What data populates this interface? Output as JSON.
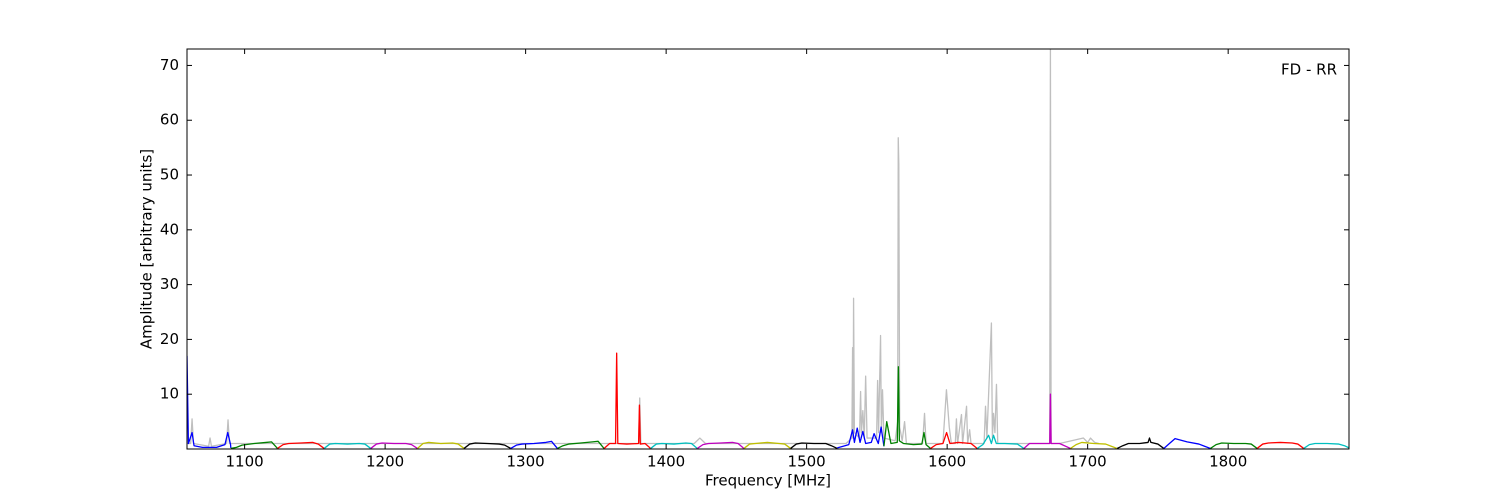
{
  "chart_data": {
    "type": "line",
    "xlabel": "Frequency [MHz]",
    "ylabel": "Amplitude [arbitrary units]",
    "annotation": "FD - RR",
    "xlim": [
      1059,
      1886
    ],
    "ylim": [
      0,
      73
    ],
    "xticks": [
      1100,
      1200,
      1300,
      1400,
      1500,
      1600,
      1700,
      1800
    ],
    "yticks": [
      10,
      20,
      30,
      40,
      50,
      60,
      70
    ],
    "grid": false,
    "series": [
      {
        "color": "#bfbfbf",
        "x": [
          1059,
          1061.6,
          1062.6,
          1063.6,
          1074.4,
          1075.4,
          1076.4,
          1087.2,
          1088.2,
          1089.2,
          1375,
          1380.4,
          1381.2,
          1382,
          1420,
          1424,
          1428,
          1528,
          1532.2,
          1532.7,
          1533.1,
          1533.4,
          1534,
          1537.6,
          1538.4,
          1539,
          1540,
          1541,
          1542,
          1543,
          1549.8,
          1550.5,
          1551.2,
          1552.6,
          1553.2,
          1554,
          1555,
          1563,
          1564.8,
          1565.2,
          1565.6,
          1566.2,
          1568,
          1569.7,
          1571,
          1582.5,
          1583.9,
          1585,
          1597,
          1599.5,
          1601.5,
          1603,
          1605.8,
          1606.6,
          1607.4,
          1610.2,
          1611,
          1613.8,
          1614.6,
          1616,
          1617,
          1626.3,
          1627.3,
          1628.3,
          1631.5,
          1632.2,
          1633,
          1634,
          1635.1,
          1636,
          1670,
          1673,
          1673.5,
          1674,
          1680,
          1697,
          1700,
          1702,
          1705,
          1708
        ],
        "values": [
          1,
          1,
          5.5,
          1,
          0.5,
          2,
          0.5,
          1,
          5.3,
          1,
          1,
          1,
          9.3,
          1,
          1,
          2,
          1,
          1,
          2,
          18.5,
          2,
          27.5,
          3,
          2,
          10.5,
          3,
          7,
          2,
          13.3,
          2,
          2,
          12.5,
          3,
          20.7,
          3,
          10.8,
          2,
          1.5,
          5,
          56.8,
          52,
          4,
          1.5,
          5,
          1,
          1,
          6.5,
          1,
          1,
          10.8,
          4,
          1,
          1,
          5.5,
          1,
          6.3,
          1,
          7.8,
          1,
          3.5,
          1,
          1,
          7.8,
          2,
          23,
          2,
          6.5,
          3,
          11.8,
          1,
          1,
          1,
          73,
          1,
          1,
          2,
          1.2,
          2,
          1.2,
          1
        ]
      },
      {
        "color": "#0000ff",
        "x": [
          1059,
          1060,
          1062.6,
          1064,
          1070,
          1080,
          1086,
          1088,
          1090,
          1090.2
        ],
        "values": [
          17,
          1,
          3,
          0.6,
          0.3,
          0.3,
          0.8,
          3,
          0.8,
          0.2
        ]
      },
      {
        "color": "#008000",
        "x": [
          1090.2,
          1094.2,
          1098.2,
          1106.8,
          1115.2,
          1119.2,
          1123.4
        ],
        "values": [
          0.1,
          0.3,
          0.7,
          1.0,
          1.2,
          1.3,
          0.1
        ]
      },
      {
        "color": "#ff0000",
        "x": [
          1123.4,
          1127.4,
          1131.4,
          1140,
          1148.4,
          1152.4,
          1156.6
        ],
        "values": [
          0.1,
          0.8,
          1.0,
          1.1,
          1.2,
          0.9,
          0.1
        ]
      },
      {
        "color": "#00bfbf",
        "x": [
          1156.6,
          1160.6,
          1164.6,
          1173.2,
          1181.6,
          1185.6,
          1189.8
        ],
        "values": [
          0.1,
          0.9,
          1.0,
          0.9,
          1.0,
          0.9,
          0.1
        ]
      },
      {
        "color": "#bf00bf",
        "x": [
          1189.8,
          1193.8,
          1197.8,
          1206.4,
          1214.8,
          1218.8,
          1223
        ],
        "values": [
          0.1,
          0.9,
          1.1,
          1.0,
          1.0,
          0.8,
          0.1
        ]
      },
      {
        "color": "#bfbf00",
        "x": [
          1223,
          1227,
          1231,
          1239.6,
          1248,
          1252,
          1256.2
        ],
        "values": [
          0.1,
          1.0,
          1.2,
          1.0,
          1.1,
          0.9,
          0.1
        ]
      },
      {
        "color": "#000000",
        "x": [
          1256.2,
          1260.2,
          1264.2,
          1272.8,
          1281.2,
          1285.2,
          1289.4
        ],
        "values": [
          0.1,
          0.9,
          1.1,
          1.0,
          0.9,
          0.7,
          0.1
        ]
      },
      {
        "color": "#0000ff",
        "x": [
          1289.4,
          1293.4,
          1297.4,
          1306,
          1314.4,
          1318.4,
          1322.6
        ],
        "values": [
          0.1,
          0.7,
          0.9,
          1.0,
          1.2,
          1.4,
          0.1
        ]
      },
      {
        "color": "#008000",
        "x": [
          1322.6,
          1326.6,
          1330.6,
          1339.2,
          1347.6,
          1351.6,
          1355.8
        ],
        "values": [
          0.1,
          0.6,
          0.9,
          1.1,
          1.3,
          1.4,
          0.1
        ]
      },
      {
        "color": "#ff0000",
        "x": [
          1355.8,
          1359.8,
          1364,
          1364.8,
          1365.6,
          1372,
          1380.4,
          1381,
          1381.6,
          1385,
          1389
        ],
        "values": [
          0.1,
          1.0,
          1.0,
          17.5,
          1.0,
          0.9,
          1.0,
          8,
          0.9,
          1.0,
          0.1
        ]
      },
      {
        "color": "#00bfbf",
        "x": [
          1389,
          1393,
          1397,
          1405.6,
          1414,
          1418,
          1422.2
        ],
        "values": [
          0.1,
          0.9,
          1.0,
          0.9,
          1.1,
          1.0,
          0.1
        ]
      },
      {
        "color": "#bf00bf",
        "x": [
          1422.2,
          1426.2,
          1430.2,
          1438.8,
          1447.2,
          1451.2,
          1455.4
        ],
        "values": [
          0.1,
          0.8,
          1.0,
          1.1,
          1.2,
          1.0,
          0.1
        ]
      },
      {
        "color": "#bfbf00",
        "x": [
          1455.4,
          1459.4,
          1463.4,
          1472,
          1480.4,
          1484.4,
          1488.6
        ],
        "values": [
          0.1,
          0.9,
          1.0,
          1.2,
          1.0,
          0.9,
          0.1
        ]
      },
      {
        "color": "#000000",
        "x": [
          1488.6,
          1492.6,
          1496.6,
          1505.2,
          1513.6,
          1517.6,
          1521.8
        ],
        "values": [
          0.1,
          0.9,
          1.1,
          1.0,
          1.0,
          0.6,
          0.1
        ]
      },
      {
        "color": "#0000ff",
        "x": [
          1521.8,
          1526,
          1530,
          1532.7,
          1534,
          1536,
          1538,
          1540,
          1542,
          1546,
          1548,
          1551,
          1553,
          1555
        ],
        "values": [
          0.2,
          0.5,
          0.8,
          3.5,
          1.2,
          3.8,
          1.2,
          3.2,
          1.0,
          1.2,
          2.8,
          1.0,
          4.0,
          0.5
        ]
      },
      {
        "color": "#008000",
        "x": [
          1555,
          1557,
          1560,
          1564.5,
          1565.3,
          1566,
          1569,
          1576,
          1582,
          1583.5,
          1585,
          1588.2
        ],
        "values": [
          0.5,
          5,
          1.0,
          1.2,
          15,
          1.5,
          1.0,
          0.8,
          0.9,
          3,
          0.8,
          0.1
        ]
      },
      {
        "color": "#ff0000",
        "x": [
          1588.2,
          1592.2,
          1597,
          1599.6,
          1602,
          1608,
          1617,
          1621.4
        ],
        "values": [
          0.1,
          0.8,
          1.0,
          3,
          1.0,
          1.2,
          1.0,
          0.1
        ]
      },
      {
        "color": "#00bfbf",
        "x": [
          1621.4,
          1625.4,
          1629.5,
          1631.5,
          1633,
          1635,
          1641,
          1650,
          1654.6
        ],
        "values": [
          0.1,
          0.8,
          2.5,
          1.0,
          2.5,
          1.0,
          1.0,
          0.9,
          0.1
        ]
      },
      {
        "color": "#bf00bf",
        "x": [
          1654.6,
          1658.6,
          1665,
          1673,
          1673.5,
          1674,
          1680,
          1687.8
        ],
        "values": [
          0.1,
          1.0,
          1.0,
          1.0,
          10,
          1.0,
          1.0,
          0.1
        ]
      },
      {
        "color": "#bfbf00",
        "x": [
          1687.8,
          1691.8,
          1695.8,
          1704.4,
          1712.8,
          1716.8,
          1721
        ],
        "values": [
          0.1,
          0.8,
          1.2,
          1.0,
          0.9,
          0.5,
          0.1
        ]
      },
      {
        "color": "#000000",
        "x": [
          1721,
          1725,
          1729,
          1737,
          1743,
          1744,
          1745,
          1750,
          1754.2
        ],
        "values": [
          0.1,
          0.6,
          1.0,
          1.0,
          1.2,
          2.0,
          1.2,
          0.9,
          0.1
        ]
      },
      {
        "color": "#0000ff",
        "x": [
          1754.2,
          1758.2,
          1762.2,
          1770.8,
          1779.2,
          1783.2,
          1787.4
        ],
        "values": [
          0.1,
          1.0,
          1.9,
          1.3,
          0.9,
          0.5,
          0.1
        ]
      },
      {
        "color": "#008000",
        "x": [
          1787.4,
          1791.4,
          1795.4,
          1804,
          1812.4,
          1816.4,
          1820.6
        ],
        "values": [
          0.1,
          0.8,
          1.1,
          1.0,
          1.0,
          0.9,
          0.1
        ]
      },
      {
        "color": "#ff0000",
        "x": [
          1820.6,
          1824.6,
          1828.6,
          1837.2,
          1845.6,
          1849.6,
          1853.8
        ],
        "values": [
          0.1,
          0.9,
          1.1,
          1.2,
          1.1,
          0.9,
          0.1
        ]
      },
      {
        "color": "#00bfbf",
        "x": [
          1853.8,
          1857.8,
          1861.8,
          1870.4,
          1878.8,
          1882.8,
          1886
        ],
        "values": [
          0.1,
          0.8,
          1.0,
          1.0,
          0.9,
          0.6,
          0.2
        ]
      }
    ]
  }
}
